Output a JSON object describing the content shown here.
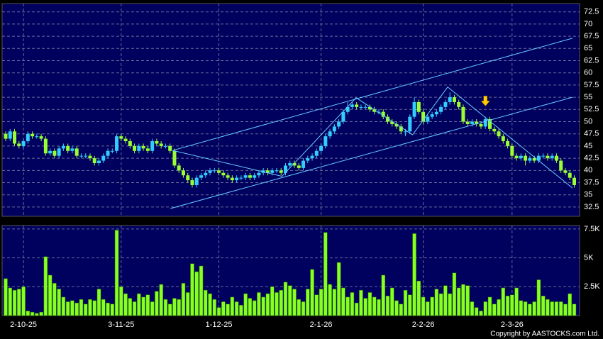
{
  "chart_data": {
    "type": "candlestick",
    "candle_fields": [
      "open",
      "high",
      "low",
      "close"
    ],
    "ohlc": [
      [
        47.5,
        48,
        46,
        46.5
      ],
      [
        46.5,
        48.5,
        46,
        48
      ],
      [
        48,
        48.5,
        45,
        45.5
      ],
      [
        45.5,
        46,
        44.5,
        45
      ],
      [
        45,
        46.5,
        44.5,
        46
      ],
      [
        46,
        48,
        45.5,
        47.5
      ],
      [
        47.5,
        48,
        46.5,
        47
      ],
      [
        47,
        47.5,
        46.5,
        47
      ],
      [
        47,
        47.5,
        46,
        46.5
      ],
      [
        46.5,
        47,
        43,
        43.5
      ],
      [
        43.5,
        44.5,
        43,
        44
      ],
      [
        44,
        44.5,
        42.5,
        43
      ],
      [
        43,
        45,
        42.5,
        44.5
      ],
      [
        44.5,
        45.5,
        44,
        45
      ],
      [
        45,
        45.5,
        43.5,
        44
      ],
      [
        44,
        45,
        43.5,
        44.5
      ],
      [
        44.5,
        45,
        42.5,
        43
      ],
      [
        43,
        43.5,
        42.5,
        43
      ],
      [
        43,
        43.5,
        42.5,
        43
      ],
      [
        43,
        43.5,
        42,
        42.5
      ],
      [
        42.5,
        43,
        41,
        41.5
      ],
      [
        41.5,
        42.5,
        41,
        42
      ],
      [
        42,
        43.5,
        41.5,
        43
      ],
      [
        43,
        44.5,
        42.5,
        44
      ],
      [
        44,
        44.5,
        43.5,
        44
      ],
      [
        44,
        47.5,
        43.5,
        47
      ],
      [
        47,
        47.5,
        46,
        46.5
      ],
      [
        46.5,
        47,
        45.5,
        46
      ],
      [
        46,
        46.5,
        44.5,
        45
      ],
      [
        45,
        45.5,
        43.5,
        44
      ],
      [
        44,
        45.5,
        43.5,
        45
      ],
      [
        45,
        45.5,
        44,
        44.5
      ],
      [
        44.5,
        45,
        43.5,
        44
      ],
      [
        44,
        46.5,
        43.5,
        46
      ],
      [
        46,
        46.5,
        45,
        45.5
      ],
      [
        45.5,
        46,
        44.5,
        45
      ],
      [
        45,
        45.5,
        44.5,
        45
      ],
      [
        45,
        45.5,
        43.5,
        44
      ],
      [
        44,
        44.5,
        40.5,
        41
      ],
      [
        41,
        41.5,
        39.5,
        40
      ],
      [
        40,
        40.5,
        38.5,
        39
      ],
      [
        39,
        39.5,
        37.5,
        38
      ],
      [
        38,
        38.5,
        36.5,
        37
      ],
      [
        37,
        39,
        36.5,
        38.5
      ],
      [
        38.5,
        39.5,
        38,
        39
      ],
      [
        39,
        40,
        38.5,
        39.5
      ],
      [
        39.5,
        40.5,
        39,
        40
      ],
      [
        40,
        40.5,
        39.5,
        40
      ],
      [
        40,
        40.5,
        39,
        39.5
      ],
      [
        39.5,
        40,
        38.5,
        39
      ],
      [
        39,
        39.5,
        38,
        38.5
      ],
      [
        38.5,
        39,
        37.5,
        38
      ],
      [
        38,
        39,
        37.5,
        38.5
      ],
      [
        38.5,
        39,
        38,
        38.5
      ],
      [
        38.5,
        39.5,
        38,
        39
      ],
      [
        39,
        39.5,
        38,
        38.5
      ],
      [
        38.5,
        39.5,
        38,
        39
      ],
      [
        39,
        40,
        38.5,
        39.5
      ],
      [
        39.5,
        40.5,
        39,
        40
      ],
      [
        40,
        40.5,
        39,
        39.5
      ],
      [
        39.5,
        40.5,
        39,
        40
      ],
      [
        40,
        40.5,
        39.5,
        40
      ],
      [
        40,
        40.5,
        39,
        39.5
      ],
      [
        39.5,
        41.5,
        39,
        41
      ],
      [
        41,
        42,
        40.5,
        41.5
      ],
      [
        41.5,
        42,
        40.5,
        41
      ],
      [
        41,
        41.5,
        40,
        40.5
      ],
      [
        40.5,
        42.5,
        40,
        42
      ],
      [
        42,
        43,
        41.5,
        42.5
      ],
      [
        42.5,
        43.5,
        42,
        43
      ],
      [
        43,
        44.5,
        42.5,
        44
      ],
      [
        44,
        45.5,
        43.5,
        45
      ],
      [
        45,
        47.5,
        44.5,
        47
      ],
      [
        47,
        48.5,
        46.5,
        48
      ],
      [
        48,
        49.5,
        47.5,
        49
      ],
      [
        49,
        50.5,
        48.5,
        50
      ],
      [
        50,
        52.5,
        49.5,
        52
      ],
      [
        52,
        54,
        51.5,
        53
      ],
      [
        53,
        54,
        52.5,
        53.5
      ],
      [
        53.5,
        54,
        52.5,
        53
      ],
      [
        53,
        53.5,
        52.5,
        53
      ],
      [
        53,
        53.5,
        52.5,
        53
      ],
      [
        53,
        53.5,
        52,
        52.5
      ],
      [
        52.5,
        53,
        51.5,
        52
      ],
      [
        52,
        52.5,
        51.5,
        52
      ],
      [
        52,
        52.5,
        50.5,
        51
      ],
      [
        51,
        51.5,
        49.5,
        50
      ],
      [
        50,
        50.5,
        49,
        49.5
      ],
      [
        49.5,
        50,
        48.5,
        49
      ],
      [
        49,
        49.5,
        47.5,
        48
      ],
      [
        48,
        48.5,
        47,
        48
      ],
      [
        48,
        51.5,
        47.5,
        51
      ],
      [
        51,
        55,
        50.5,
        54
      ],
      [
        54,
        54.5,
        51.5,
        52
      ],
      [
        52,
        52.5,
        49.5,
        50
      ],
      [
        50,
        51.5,
        49.5,
        51
      ],
      [
        51,
        52,
        50.5,
        51.5
      ],
      [
        51.5,
        52.5,
        51,
        52
      ],
      [
        52,
        53.5,
        51.5,
        53
      ],
      [
        53,
        54.5,
        52.5,
        54
      ],
      [
        54,
        56,
        53.5,
        55
      ],
      [
        55,
        55.5,
        53.5,
        54
      ],
      [
        54,
        54.5,
        52.5,
        53
      ],
      [
        53,
        53.5,
        49.5,
        50
      ],
      [
        50,
        50.5,
        49,
        49.5
      ],
      [
        49.5,
        50.5,
        49,
        50
      ],
      [
        50,
        50.5,
        49,
        49.5
      ],
      [
        49.5,
        50,
        48.5,
        49
      ],
      [
        49,
        51,
        48.5,
        50.5
      ],
      [
        50.5,
        51,
        48,
        48.5
      ],
      [
        48.5,
        49,
        47.5,
        48
      ],
      [
        48,
        48.5,
        46.5,
        47
      ],
      [
        47,
        47.5,
        45.5,
        46
      ],
      [
        46,
        46.5,
        44.5,
        45
      ],
      [
        45,
        45.5,
        42.5,
        43
      ],
      [
        43,
        43.5,
        42,
        42.5
      ],
      [
        42.5,
        43.5,
        42,
        43
      ],
      [
        43,
        43.5,
        41,
        42
      ],
      [
        42,
        43,
        41.5,
        42.5
      ],
      [
        42.5,
        43,
        41.5,
        42
      ],
      [
        42,
        43.5,
        41.5,
        43
      ],
      [
        43,
        43.5,
        42.5,
        43
      ],
      [
        43,
        43.5,
        42,
        42.5
      ],
      [
        42.5,
        43.5,
        42,
        43
      ],
      [
        43,
        43.5,
        41.5,
        42
      ],
      [
        42,
        42.5,
        39.5,
        40
      ],
      [
        40,
        40.5,
        39,
        39.5
      ],
      [
        39.5,
        40,
        38,
        38.5
      ],
      [
        38.5,
        39,
        36.5,
        37
      ]
    ],
    "volumes": [
      3200,
      2400,
      2200,
      2300,
      2500,
      400,
      300,
      200,
      300,
      5100,
      3500,
      2800,
      2300,
      1600,
      1200,
      1300,
      1100,
      1400,
      1000,
      1400,
      1300,
      2300,
      1400,
      1100,
      1000,
      7400,
      2500,
      1900,
      1500,
      1200,
      1900,
      1600,
      1800,
      1200,
      2100,
      2700,
      1400,
      1000,
      1500,
      1400,
      2800,
      2000,
      4500,
      3800,
      4300,
      2200,
      1900,
      1400,
      700,
      1200,
      1000,
      1600,
      1200,
      900,
      1900,
      1500,
      1300,
      2000,
      1600,
      1900,
      2500,
      2000,
      2200,
      2900,
      2600,
      2300,
      1400,
      1200,
      2300,
      4000,
      1800,
      2300,
      7200,
      2700,
      2300,
      4600,
      2400,
      1600,
      2000,
      1100,
      2200,
      1500,
      2000,
      1600,
      1400,
      3500,
      1700,
      2400,
      1300,
      1000,
      2200,
      1800,
      7100,
      3000,
      1600,
      1200,
      1600,
      2300,
      1900,
      2600,
      1900,
      3700,
      2400,
      2700,
      2600,
      1200,
      700,
      400,
      1200,
      1600,
      1000,
      1400,
      2400,
      1700,
      1800,
      2400,
      1300,
      1200,
      1000,
      1200,
      3100,
      1700,
      1400,
      1200,
      1200,
      1200,
      1000,
      1900,
      1000
    ],
    "up_color": "#33ccff",
    "down_color": "#99ff33",
    "volume_color": "#88ff22",
    "xlim": [
      -0.8,
      129.2
    ],
    "xticks": [
      {
        "value": 4,
        "label": "2-10-25"
      },
      {
        "value": 26,
        "label": "3-11-25"
      },
      {
        "value": 48,
        "label": "1-12-25"
      },
      {
        "value": 71,
        "label": "2-1-26"
      },
      {
        "value": 94,
        "label": "2-2-26"
      },
      {
        "value": 114,
        "label": "2-3-26"
      }
    ],
    "ylim": [
      30.6,
      74.2
    ],
    "yticks": [
      32.5,
      35,
      37.5,
      40,
      42.5,
      45,
      47.5,
      50,
      52.5,
      55,
      57.5,
      60,
      62.5,
      65,
      67.5,
      70,
      72.5
    ],
    "volume_ylim": [
      0,
      7800
    ],
    "volume_ticks": [
      {
        "value": 2500,
        "label": "2.5K"
      },
      {
        "value": 5000,
        "label": "5K"
      },
      {
        "value": 7500,
        "label": "7.5K"
      }
    ],
    "grid": true,
    "trendlines": [
      {
        "x": [
          37.6,
          127.6
        ],
        "y": [
          44.1,
          67.1
        ]
      },
      {
        "x": [
          37.1,
          127.6
        ],
        "y": [
          32.2,
          55
        ]
      },
      {
        "x": [
          37.6,
          62.2,
          78.9,
          91.6,
          99.5,
          127.6
        ],
        "y": [
          44.1,
          38.8,
          54.9,
          47.3,
          57.1,
          36.4
        ]
      }
    ],
    "trendline_color": "#66ccff",
    "marker": {
      "x": 108,
      "y": 53.5,
      "color": "#ffcc00"
    },
    "copyright": "Copyright by AASTOCKS.com Ltd."
  }
}
